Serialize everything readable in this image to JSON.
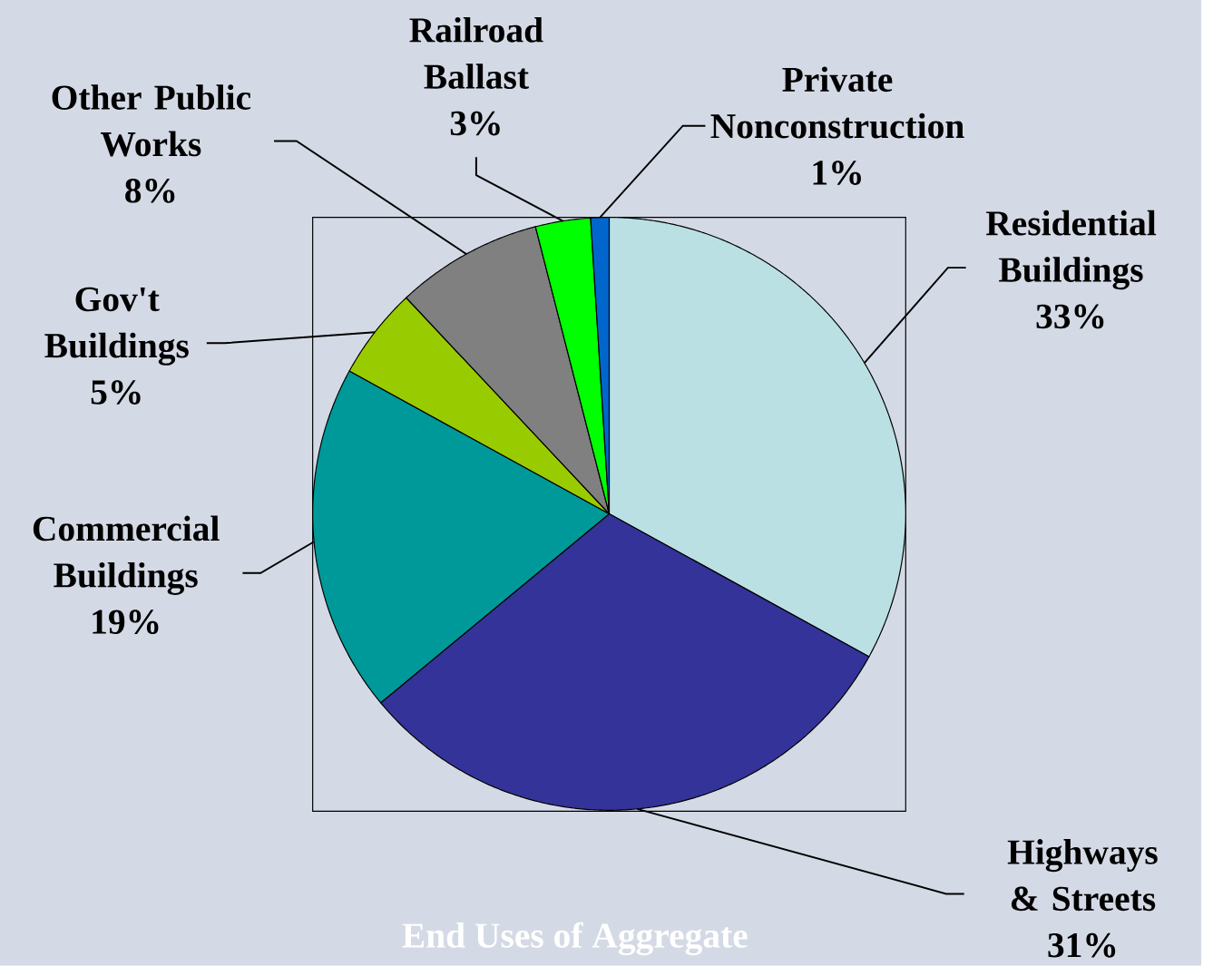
{
  "chart_data": {
    "type": "pie",
    "title": "End Uses of Aggregate",
    "categories": [
      "Residential Buildings",
      "Highways & Streets",
      "Commercial Buildings",
      "Gov't Buildings",
      "Other Public Works",
      "Railroad Ballast",
      "Private Nonconstruction"
    ],
    "values": [
      33,
      31,
      19,
      5,
      8,
      3,
      1
    ],
    "value_labels": [
      "33%",
      "31%",
      "19%",
      "5%",
      "8%",
      "3%",
      "1%"
    ],
    "colors": [
      "#bae0e3",
      "#343399",
      "#009999",
      "#99cc00",
      "#808080",
      "#00ff00",
      "#0066cc"
    ]
  }
}
